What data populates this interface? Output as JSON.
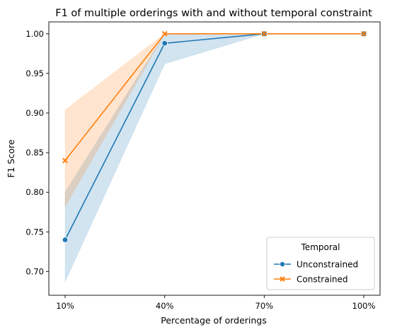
{
  "chart_data": {
    "type": "line",
    "title": "F1 of multiple orderings with and without temporal constraint",
    "xlabel": "Percentage of orderings",
    "ylabel": "F1 Score",
    "categories": [
      "10%",
      "40%",
      "70%",
      "100%"
    ],
    "ylim": [
      0.67,
      1.015
    ],
    "yticks": [
      0.7,
      0.75,
      0.8,
      0.85,
      0.9,
      0.95,
      1.0
    ],
    "ytick_labels": [
      "0.70",
      "0.75",
      "0.80",
      "0.85",
      "0.90",
      "0.95",
      "1.00"
    ],
    "grid": false,
    "legend": {
      "title": "Temporal",
      "placement": "bottom-right"
    },
    "series": [
      {
        "name": "Unconstrained",
        "color": "#1f77b4",
        "marker": "circle",
        "values": [
          0.74,
          0.988,
          1.0,
          1.0
        ],
        "ci_low": [
          0.687,
          0.962,
          1.0,
          1.0
        ],
        "ci_high": [
          0.8,
          1.0,
          1.0,
          1.0
        ]
      },
      {
        "name": "Constrained",
        "color": "#ff7f0e",
        "marker": "x",
        "values": [
          0.84,
          1.0,
          1.0,
          1.0
        ],
        "ci_low": [
          0.782,
          1.0,
          1.0,
          1.0
        ],
        "ci_high": [
          0.904,
          1.0,
          1.0,
          1.0
        ]
      }
    ]
  }
}
